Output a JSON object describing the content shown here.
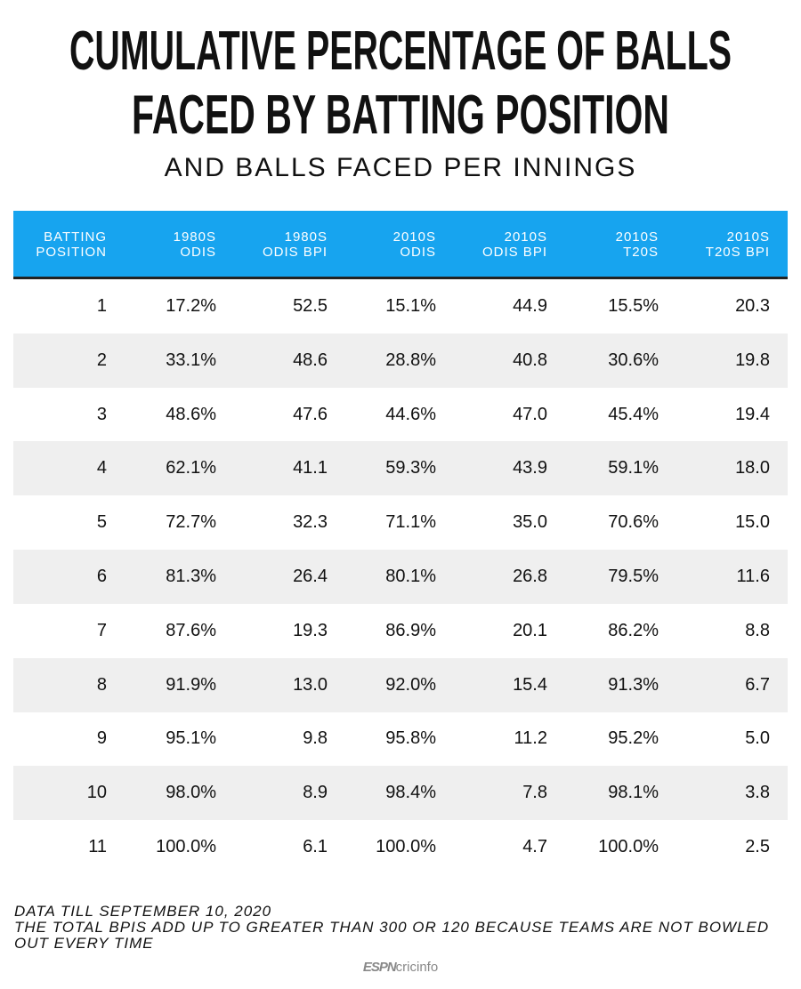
{
  "header": {
    "title_lines": [
      "CUMULATIVE PERCENTAGE OF BALLS",
      "FACED BY BATTING POSITION"
    ],
    "subtitle": "AND BALLS FACED PER INNINGS"
  },
  "table": {
    "columns": [
      [
        "BATTING",
        "POSITION"
      ],
      [
        "1980S",
        "ODIS"
      ],
      [
        "1980S",
        "ODIS BPI"
      ],
      [
        "2010S",
        "ODIS"
      ],
      [
        "2010S",
        "ODIS BPI"
      ],
      [
        "2010S",
        "T20S"
      ],
      [
        "2010S",
        "T20S BPI"
      ]
    ],
    "rows": [
      [
        "1",
        "17.2%",
        "52.5",
        "15.1%",
        "44.9",
        "15.5%",
        "20.3"
      ],
      [
        "2",
        "33.1%",
        "48.6",
        "28.8%",
        "40.8",
        "30.6%",
        "19.8"
      ],
      [
        "3",
        "48.6%",
        "47.6",
        "44.6%",
        "47.0",
        "45.4%",
        "19.4"
      ],
      [
        "4",
        "62.1%",
        "41.1",
        "59.3%",
        "43.9",
        "59.1%",
        "18.0"
      ],
      [
        "5",
        "72.7%",
        "32.3",
        "71.1%",
        "35.0",
        "70.6%",
        "15.0"
      ],
      [
        "6",
        "81.3%",
        "26.4",
        "80.1%",
        "26.8",
        "79.5%",
        "11.6"
      ],
      [
        "7",
        "87.6%",
        "19.3",
        "86.9%",
        "20.1",
        "86.2%",
        "8.8"
      ],
      [
        "8",
        "91.9%",
        "13.0",
        "92.0%",
        "15.4",
        "91.3%",
        "6.7"
      ],
      [
        "9",
        "95.1%",
        "9.8",
        "95.8%",
        "11.2",
        "95.2%",
        "5.0"
      ],
      [
        "10",
        "98.0%",
        "8.9",
        "98.4%",
        "7.8",
        "98.1%",
        "3.8"
      ],
      [
        "11",
        "100.0%",
        "6.1",
        "100.0%",
        "4.7",
        "100.0%",
        "2.5"
      ]
    ]
  },
  "footnotes": [
    "DATA TILL SEPTEMBER 10, 2020",
    "THE TOTAL BPIS ADD UP TO GREATER THAN 300 OR 120 BECAUSE TEAMS ARE NOT BOWLED OUT EVERY TIME"
  ],
  "brand": [
    "ESPN",
    "cricinfo"
  ]
}
